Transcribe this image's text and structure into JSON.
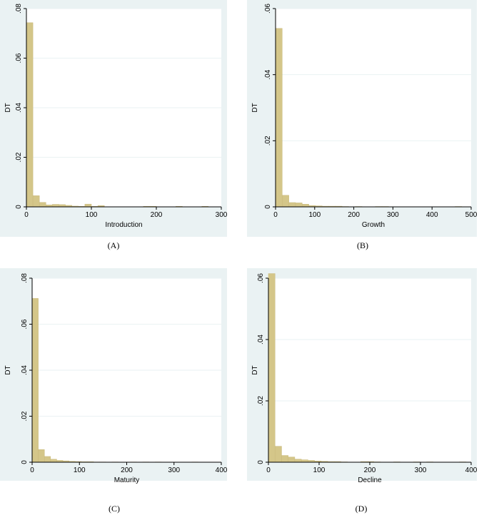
{
  "chart_data": [
    {
      "type": "bar",
      "id": "A",
      "caption": "(A)",
      "xlabel": "Introduction",
      "ylabel": "DT",
      "xlim": [
        0,
        300
      ],
      "ylim": [
        0,
        0.08
      ],
      "xticks": [
        "0",
        "100",
        "200",
        "300"
      ],
      "yticks": [
        "0",
        ".02",
        ".04",
        ".06",
        ".08"
      ],
      "bin_width": 10,
      "bins": [
        [
          0,
          0.0743
        ],
        [
          10,
          0.0045
        ],
        [
          20,
          0.0018
        ],
        [
          30,
          0.0008
        ],
        [
          40,
          0.001
        ],
        [
          50,
          0.0009
        ],
        [
          60,
          0.0006
        ],
        [
          70,
          0.0003
        ],
        [
          80,
          0.0002
        ],
        [
          90,
          0.0011
        ],
        [
          100,
          0.0002
        ],
        [
          110,
          0.0005
        ],
        [
          180,
          0.0002
        ],
        [
          190,
          0.0002
        ],
        [
          230,
          0.0002
        ],
        [
          270,
          0.0002
        ]
      ]
    },
    {
      "type": "bar",
      "id": "B",
      "caption": "(B)",
      "xlabel": "Growth",
      "ylabel": "DT",
      "xlim": [
        0,
        500
      ],
      "ylim": [
        0,
        0.06
      ],
      "xticks": [
        "0",
        "100",
        "200",
        "300",
        "400",
        "500"
      ],
      "yticks": [
        "0",
        ".02",
        ".04",
        ".06"
      ],
      "bin_width": 17,
      "bins": [
        [
          0,
          0.054
        ],
        [
          17,
          0.0035
        ],
        [
          34,
          0.0013
        ],
        [
          51,
          0.0012
        ],
        [
          68,
          0.0008
        ],
        [
          85,
          0.0004
        ],
        [
          102,
          0.0003
        ],
        [
          119,
          0.0002
        ],
        [
          136,
          0.0002
        ],
        [
          153,
          0.0002
        ],
        [
          170,
          0.0001
        ],
        [
          204,
          0.0001
        ],
        [
          255,
          0.0001
        ],
        [
          272,
          0.0001
        ],
        [
          459,
          0.0001
        ]
      ]
    },
    {
      "type": "bar",
      "id": "C",
      "caption": "(C)",
      "xlabel": "Maturity",
      "ylabel": "DT",
      "xlim": [
        0,
        400
      ],
      "ylim": [
        0,
        0.08
      ],
      "xticks": [
        "0",
        "100",
        "200",
        "300",
        "400"
      ],
      "yticks": [
        "0",
        ".02",
        ".04",
        ".06",
        ".08"
      ],
      "bin_width": 13,
      "bins": [
        [
          0,
          0.0712
        ],
        [
          13,
          0.0055
        ],
        [
          26,
          0.0025
        ],
        [
          39,
          0.0013
        ],
        [
          52,
          0.0008
        ],
        [
          65,
          0.0006
        ],
        [
          78,
          0.0004
        ],
        [
          91,
          0.0003
        ],
        [
          104,
          0.0002
        ],
        [
          117,
          0.0002
        ],
        [
          130,
          0.0001
        ],
        [
          143,
          0.0001
        ],
        [
          169,
          0.0001
        ],
        [
          208,
          0.0001
        ],
        [
          234,
          0.0001
        ],
        [
          260,
          0.0001
        ],
        [
          338,
          0.0001
        ]
      ]
    },
    {
      "type": "bar",
      "id": "D",
      "caption": "(D)",
      "xlabel": "Decline",
      "ylabel": "DT",
      "xlim": [
        0,
        400
      ],
      "ylim": [
        0,
        0.06
      ],
      "xticks": [
        "0",
        "100",
        "200",
        "300",
        "400"
      ],
      "yticks": [
        "0",
        ".02",
        ".04",
        ".06"
      ],
      "bin_width": 13,
      "bins": [
        [
          0,
          0.0615
        ],
        [
          13,
          0.0052
        ],
        [
          26,
          0.0022
        ],
        [
          39,
          0.0017
        ],
        [
          52,
          0.001
        ],
        [
          65,
          0.0008
        ],
        [
          78,
          0.0006
        ],
        [
          91,
          0.0004
        ],
        [
          104,
          0.0003
        ],
        [
          117,
          0.0002
        ],
        [
          130,
          0.0002
        ],
        [
          143,
          0.0001
        ],
        [
          182,
          0.0002
        ],
        [
          195,
          0.0002
        ],
        [
          208,
          0.0001
        ],
        [
          247,
          0.0001
        ],
        [
          286,
          0.0001
        ],
        [
          312,
          0.0001
        ],
        [
          377,
          0.0001
        ]
      ]
    }
  ],
  "style": {
    "bar_color": "#d4c689",
    "panel_bg": "#eaf2f3",
    "plot_bg": "#ffffff"
  }
}
